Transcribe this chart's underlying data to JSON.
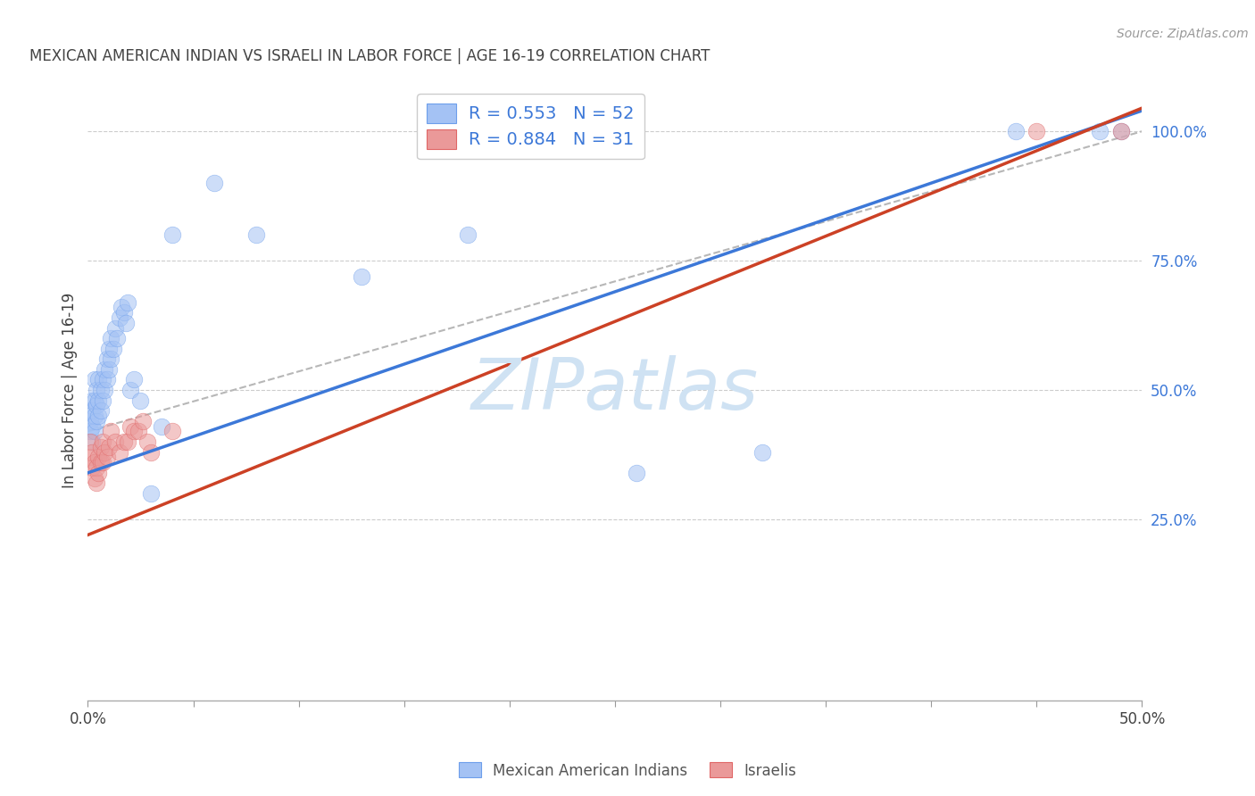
{
  "title": "MEXICAN AMERICAN INDIAN VS ISRAELI IN LABOR FORCE | AGE 16-19 CORRELATION CHART",
  "source": "Source: ZipAtlas.com",
  "ylabel": "In Labor Force | Age 16-19",
  "xlim": [
    0.0,
    0.5
  ],
  "ylim": [
    -0.1,
    1.1
  ],
  "yticks_right": [
    0.25,
    0.5,
    0.75,
    1.0
  ],
  "ytick_labels_right": [
    "25.0%",
    "50.0%",
    "75.0%",
    "100.0%"
  ],
  "blue_color": "#a4c2f4",
  "blue_edge_color": "#6d9eeb",
  "pink_color": "#ea9999",
  "pink_edge_color": "#e06666",
  "blue_line_color": "#3c78d8",
  "pink_line_color": "#cc4125",
  "dash_line_color": "#b7b7b7",
  "legend_blue_label": "R = 0.553   N = 52",
  "legend_pink_label": "R = 0.884   N = 31",
  "legend_text_color": "#3c78d8",
  "right_tick_color": "#3c78d8",
  "watermark_text": "ZIPatlas",
  "watermark_color": "#cfe2f3",
  "bg_color": "#ffffff",
  "grid_color": "#cccccc",
  "title_color": "#434343",
  "source_color": "#999999",
  "ylabel_color": "#434343",
  "blue_line_intercept": 0.34,
  "blue_line_slope": 1.4,
  "pink_line_intercept": 0.22,
  "pink_line_slope": 1.65,
  "blue_x": [
    0.001,
    0.001,
    0.001,
    0.002,
    0.002,
    0.002,
    0.002,
    0.003,
    0.003,
    0.003,
    0.003,
    0.004,
    0.004,
    0.004,
    0.005,
    0.005,
    0.005,
    0.006,
    0.006,
    0.007,
    0.007,
    0.008,
    0.008,
    0.009,
    0.009,
    0.01,
    0.01,
    0.011,
    0.011,
    0.012,
    0.013,
    0.014,
    0.015,
    0.016,
    0.017,
    0.018,
    0.019,
    0.02,
    0.022,
    0.025,
    0.03,
    0.035,
    0.04,
    0.06,
    0.08,
    0.13,
    0.18,
    0.26,
    0.32,
    0.44,
    0.48,
    0.49
  ],
  "blue_y": [
    0.42,
    0.44,
    0.46,
    0.4,
    0.43,
    0.46,
    0.48,
    0.42,
    0.45,
    0.48,
    0.52,
    0.44,
    0.47,
    0.5,
    0.45,
    0.48,
    0.52,
    0.46,
    0.5,
    0.48,
    0.52,
    0.5,
    0.54,
    0.52,
    0.56,
    0.54,
    0.58,
    0.56,
    0.6,
    0.58,
    0.62,
    0.6,
    0.64,
    0.66,
    0.65,
    0.63,
    0.67,
    0.5,
    0.52,
    0.48,
    0.3,
    0.43,
    0.8,
    0.9,
    0.8,
    0.72,
    0.8,
    0.34,
    0.38,
    1.0,
    1.0,
    1.0
  ],
  "pink_x": [
    0.001,
    0.001,
    0.002,
    0.002,
    0.003,
    0.003,
    0.004,
    0.004,
    0.005,
    0.005,
    0.006,
    0.006,
    0.007,
    0.007,
    0.008,
    0.009,
    0.01,
    0.011,
    0.013,
    0.015,
    0.017,
    0.019,
    0.02,
    0.022,
    0.024,
    0.026,
    0.028,
    0.03,
    0.04,
    0.45,
    0.49
  ],
  "pink_y": [
    0.37,
    0.4,
    0.35,
    0.38,
    0.33,
    0.36,
    0.32,
    0.35,
    0.34,
    0.37,
    0.36,
    0.39,
    0.36,
    0.4,
    0.38,
    0.37,
    0.39,
    0.42,
    0.4,
    0.38,
    0.4,
    0.4,
    0.43,
    0.42,
    0.42,
    0.44,
    0.4,
    0.38,
    0.42,
    1.0,
    1.0
  ],
  "marker_size": 180,
  "marker_alpha": 0.55,
  "scatter_linewidth": 0.5
}
